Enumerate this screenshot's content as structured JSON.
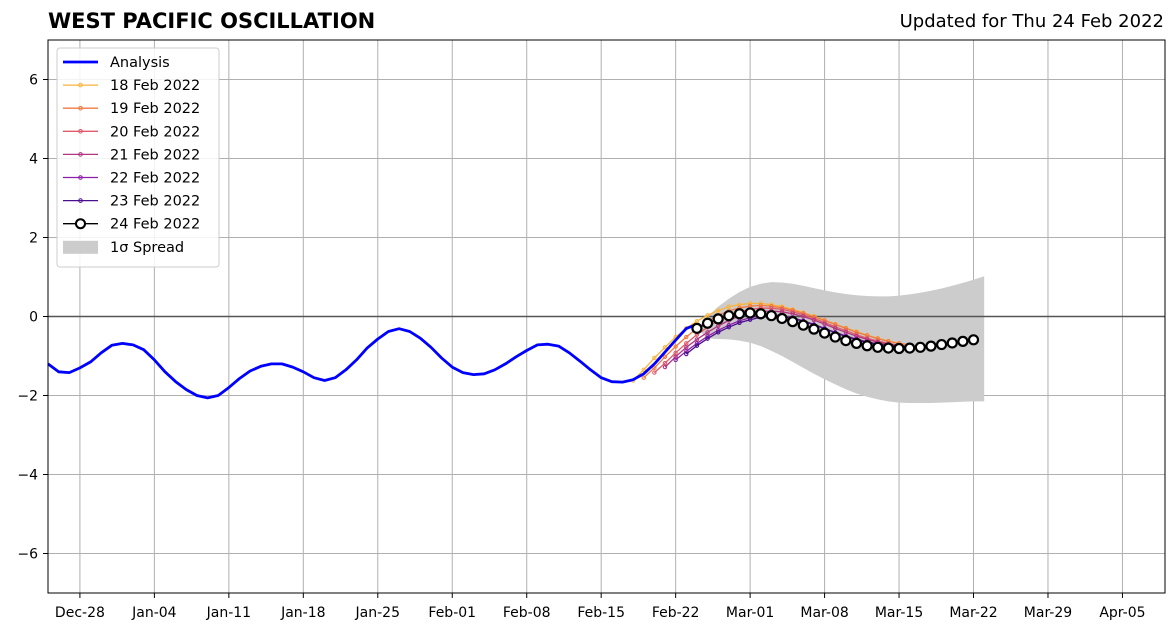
{
  "title": "WEST PACIFIC OSCILLATION",
  "updated": "Updated for Thu 24 Feb 2022",
  "chart_data": {
    "type": "line",
    "title": "WEST PACIFIC OSCILLATION",
    "xlabel": "",
    "ylabel": "",
    "x_axis": "days since 2021-12-25",
    "xlim": [
      0,
      105
    ],
    "ylim": [
      -7,
      7
    ],
    "xticks": [
      {
        "day": 3,
        "label": "Dec-28"
      },
      {
        "day": 10,
        "label": "Jan-04"
      },
      {
        "day": 17,
        "label": "Jan-11"
      },
      {
        "day": 24,
        "label": "Jan-18"
      },
      {
        "day": 31,
        "label": "Jan-25"
      },
      {
        "day": 38,
        "label": "Feb-01"
      },
      {
        "day": 45,
        "label": "Feb-08"
      },
      {
        "day": 52,
        "label": "Feb-15"
      },
      {
        "day": 59,
        "label": "Feb-22"
      },
      {
        "day": 66,
        "label": "Mar-01"
      },
      {
        "day": 73,
        "label": "Mar-08"
      },
      {
        "day": 80,
        "label": "Mar-15"
      },
      {
        "day": 87,
        "label": "Mar-22"
      },
      {
        "day": 94,
        "label": "Mar-29"
      },
      {
        "day": 101,
        "label": "Apr-05"
      }
    ],
    "yticks": [
      -6,
      -4,
      -2,
      0,
      2,
      4,
      6
    ],
    "ytick_labels": [
      "−6",
      "−4",
      "−2",
      "0",
      "2",
      "4",
      "6"
    ],
    "grid": true,
    "legend_position": "top-left",
    "legend": [
      "Analysis",
      "18 Feb 2022",
      "19 Feb 2022",
      "20 Feb 2022",
      "21 Feb 2022",
      "22 Feb 2022",
      "23 Feb 2022",
      "24 Feb 2022",
      "1σ Spread"
    ],
    "analysis": {
      "name": "Analysis",
      "color": "#0000ff",
      "x_start": 0,
      "values": [
        -1.2,
        -1.4,
        -1.42,
        -1.3,
        -1.15,
        -0.92,
        -0.73,
        -0.68,
        -0.72,
        -0.84,
        -1.1,
        -1.4,
        -1.65,
        -1.85,
        -2.0,
        -2.06,
        -2.0,
        -1.8,
        -1.57,
        -1.38,
        -1.26,
        -1.2,
        -1.2,
        -1.28,
        -1.4,
        -1.55,
        -1.62,
        -1.55,
        -1.35,
        -1.1,
        -0.8,
        -0.57,
        -0.38,
        -0.31,
        -0.38,
        -0.55,
        -0.78,
        -1.05,
        -1.28,
        -1.42,
        -1.47,
        -1.45,
        -1.35,
        -1.2,
        -1.02,
        -0.86,
        -0.72,
        -0.7,
        -0.75,
        -0.92,
        -1.13,
        -1.35,
        -1.55,
        -1.65,
        -1.66,
        -1.6,
        -1.45,
        -1.2,
        -0.9,
        -0.6,
        -0.3,
        -0.2
      ]
    },
    "series": [
      {
        "name": "18 Feb 2022",
        "color": "#f9b43c",
        "x_start": 55,
        "values": [
          -1.62,
          -1.35,
          -1.05,
          -0.78,
          -0.52,
          -0.3,
          -0.12,
          0.03,
          0.15,
          0.25,
          0.3,
          0.33,
          0.33,
          0.3,
          0.25,
          0.18,
          0.1,
          0.01,
          -0.09,
          -0.19,
          -0.29,
          -0.38,
          -0.47,
          -0.55,
          -0.62,
          -0.68,
          -0.72
        ]
      },
      {
        "name": "19 Feb 2022",
        "color": "#f07a43",
        "x_start": 56,
        "values": [
          -1.55,
          -1.3,
          -1.02,
          -0.76,
          -0.52,
          -0.3,
          -0.12,
          0.03,
          0.14,
          0.22,
          0.26,
          0.28,
          0.26,
          0.22,
          0.16,
          0.08,
          -0.01,
          -0.1,
          -0.2,
          -0.3,
          -0.4,
          -0.48,
          -0.56,
          -0.63,
          -0.68,
          -0.72
        ]
      },
      {
        "name": "20 Feb 2022",
        "color": "#e05a6a",
        "x_start": 57,
        "values": [
          -1.42,
          -1.18,
          -0.92,
          -0.68,
          -0.46,
          -0.27,
          -0.1,
          0.03,
          0.12,
          0.18,
          0.21,
          0.21,
          0.18,
          0.12,
          0.04,
          -0.05,
          -0.15,
          -0.26,
          -0.36,
          -0.46,
          -0.55,
          -0.62,
          -0.68,
          -0.73,
          -0.76
        ]
      },
      {
        "name": "21 Feb 2022",
        "color": "#b2367f",
        "x_start": 58,
        "values": [
          -1.28,
          -1.02,
          -0.78,
          -0.58,
          -0.4,
          -0.24,
          -0.1,
          0.01,
          0.09,
          0.13,
          0.14,
          0.12,
          0.07,
          0.0,
          -0.09,
          -0.19,
          -0.3,
          -0.4,
          -0.5,
          -0.58,
          -0.65,
          -0.7,
          -0.74,
          -0.76
        ]
      },
      {
        "name": "22 Feb 2022",
        "color": "#8c1fa8",
        "x_start": 59,
        "values": [
          -1.1,
          -0.88,
          -0.68,
          -0.5,
          -0.35,
          -0.22,
          -0.11,
          -0.03,
          0.02,
          0.04,
          0.02,
          -0.03,
          -0.11,
          -0.2,
          -0.3,
          -0.4,
          -0.49,
          -0.57,
          -0.64,
          -0.69,
          -0.73,
          -0.75,
          -0.76
        ]
      },
      {
        "name": "23 Feb 2022",
        "color": "#4a0f8f",
        "x_start": 60,
        "values": [
          -0.95,
          -0.74,
          -0.56,
          -0.4,
          -0.27,
          -0.16,
          -0.08,
          -0.02,
          0.01,
          0.0,
          -0.05,
          -0.12,
          -0.21,
          -0.31,
          -0.41,
          -0.51,
          -0.59,
          -0.66,
          -0.71,
          -0.74,
          -0.76,
          -0.77
        ]
      },
      {
        "name": "24 Feb 2022",
        "color": "#000000",
        "x_start": 61,
        "marker": "open-circle",
        "values": [
          -0.3,
          -0.17,
          -0.06,
          0.02,
          0.07,
          0.09,
          0.07,
          0.02,
          -0.05,
          -0.13,
          -0.22,
          -0.32,
          -0.42,
          -0.52,
          -0.61,
          -0.68,
          -0.74,
          -0.78,
          -0.8,
          -0.81,
          -0.8,
          -0.78,
          -0.75,
          -0.71,
          -0.67,
          -0.63,
          -0.59
        ]
      }
    ],
    "spread": {
      "name": "1σ Spread",
      "color": "#cccccc",
      "x_start": 61,
      "upper": [
        -0.3,
        0.0,
        0.25,
        0.45,
        0.62,
        0.75,
        0.83,
        0.87,
        0.86,
        0.83,
        0.78,
        0.72,
        0.66,
        0.61,
        0.57,
        0.54,
        0.52,
        0.51,
        0.51,
        0.53,
        0.56,
        0.6,
        0.65,
        0.71,
        0.78,
        0.85,
        0.93,
        1.02
      ],
      "lower": [
        -0.3,
        -0.56,
        -0.57,
        -0.58,
        -0.61,
        -0.66,
        -0.75,
        -0.87,
        -1.0,
        -1.15,
        -1.3,
        -1.45,
        -1.59,
        -1.72,
        -1.84,
        -1.95,
        -2.03,
        -2.1,
        -2.15,
        -2.18,
        -2.19,
        -2.19,
        -2.19,
        -2.18,
        -2.17,
        -2.16,
        -2.15,
        -2.15
      ]
    }
  }
}
